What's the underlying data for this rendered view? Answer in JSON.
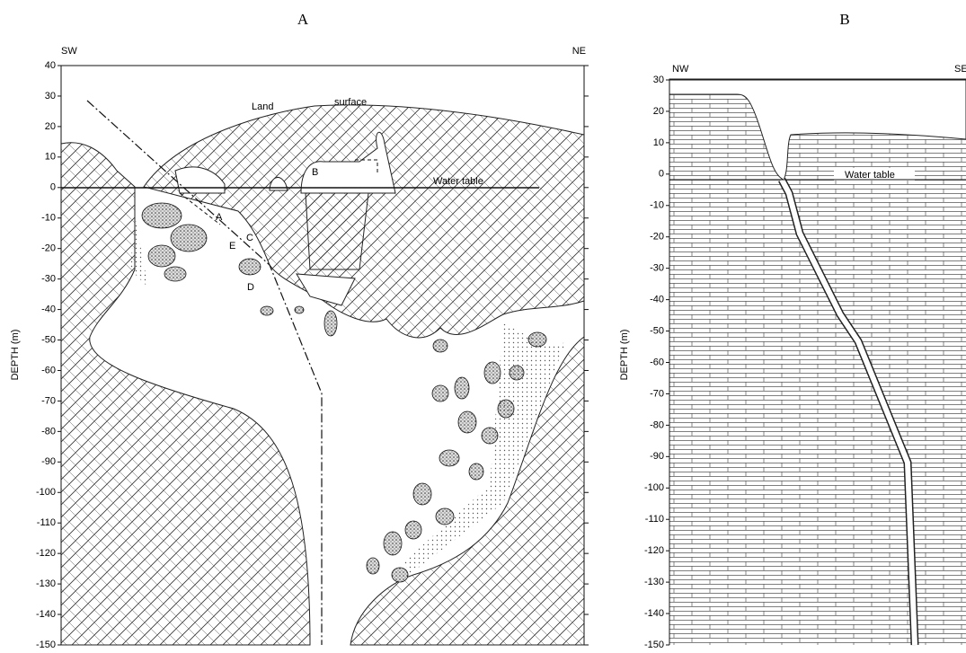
{
  "panels": [
    {
      "title": "A",
      "left_direction": "SW",
      "right_direction": "NE",
      "y_axis_label": "DEPTH (m)",
      "yticks": [
        40,
        30,
        20,
        10,
        0,
        -10,
        -20,
        -30,
        -40,
        -50,
        -60,
        -70,
        -80,
        -90,
        -100,
        -110,
        -120,
        -130,
        -140,
        -150
      ],
      "annotations": {
        "land": "Land",
        "surface": "surface",
        "b": "B",
        "water_table": "Water table",
        "a": "A",
        "c": "C",
        "e": "E",
        "d": "D"
      }
    },
    {
      "title": "B",
      "left_direction": "NW",
      "right_direction": "SE",
      "y_axis_label": "DEPTH (m)",
      "yticks": [
        30,
        20,
        10,
        0,
        -10,
        -20,
        -30,
        -40,
        -50,
        -60,
        -70,
        -80,
        -90,
        -100,
        -110,
        -120,
        -130,
        -140,
        -150
      ],
      "annotations": {
        "water_table": "Water table"
      }
    }
  ]
}
